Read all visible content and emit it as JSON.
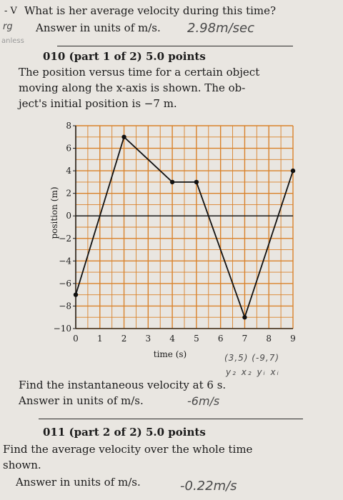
{
  "top": {
    "marker": "- V",
    "question": "What is her average velocity during this time?",
    "margin_note_1": "rg",
    "answer_prompt": "Answer in units of m/s.",
    "hand_answer": "2.98m/sec",
    "margin_note_2": "anless"
  },
  "part1": {
    "heading": "010 (part 1 of 2) 5.0 points",
    "line1": "The position versus time for a certain object",
    "line2": "moving along the x-axis is shown.  The ob-",
    "line3": "ject's initial position is −7 m."
  },
  "chart_data": {
    "type": "line",
    "title": "",
    "xlabel": "time (s)",
    "ylabel": "position (m)",
    "xlim": [
      0,
      9
    ],
    "ylim": [
      -10,
      8
    ],
    "grid": true,
    "x_ticks": [
      "0",
      "1",
      "2",
      "3",
      "4",
      "5",
      "6",
      "7",
      "8",
      "9"
    ],
    "y_ticks": [
      "8",
      "6",
      "4",
      "2",
      "0",
      "−2",
      "−4",
      "−6",
      "−8",
      "−10"
    ],
    "series": [
      {
        "x": [
          0,
          1,
          2,
          3,
          4,
          5,
          6,
          7,
          8,
          9
        ],
        "y": [
          -7,
          0,
          7,
          5,
          3,
          3,
          -3,
          -9,
          -2.5,
          4
        ]
      }
    ],
    "markers_at": [
      0,
      2,
      4,
      5,
      7,
      9
    ],
    "line_color": "#111111",
    "grid_color": "#d9822b"
  },
  "hand_notes": {
    "points": "(3,5)  (-9,7)",
    "symbols": "y₂ x₂  yᵢ  xᵢ"
  },
  "q_instant": {
    "line1": "Find the instantaneous velocity at 6 s.",
    "line2": "Answer in units of m/s.",
    "hand_answer": "-6m/s"
  },
  "part2": {
    "heading": "011 (part 2 of 2) 5.0 points",
    "line1": "Find the average velocity over the whole time",
    "line2": "shown.",
    "line3": "Answer in units of m/s.",
    "hand_answer": "-0.22m/s"
  }
}
